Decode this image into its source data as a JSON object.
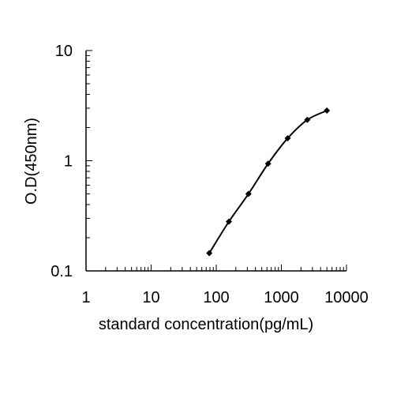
{
  "chart_data": {
    "type": "line",
    "title": "",
    "xlabel": "standard concentration(pg/mL)",
    "ylabel": "O.D(450nm)",
    "x_scale": "log",
    "y_scale": "log",
    "xlim": [
      1,
      10000
    ],
    "ylim": [
      0.1,
      10
    ],
    "x_ticks": [
      1,
      10,
      100,
      1000,
      10000
    ],
    "x_tick_labels": [
      "1",
      "10",
      "100",
      "1000",
      "10000"
    ],
    "y_ticks": [
      0.1,
      1,
      10
    ],
    "y_tick_labels": [
      "0.1",
      "1",
      "10"
    ],
    "grid": false,
    "legend": "none",
    "line_color": "#000000",
    "marker": "diamond",
    "series": [
      {
        "x": [
          78.125,
          156.25,
          312.5,
          625,
          1250,
          2500,
          5000
        ],
        "y": [
          0.145,
          0.28,
          0.5,
          0.94,
          1.6,
          2.35,
          2.85
        ]
      }
    ]
  }
}
